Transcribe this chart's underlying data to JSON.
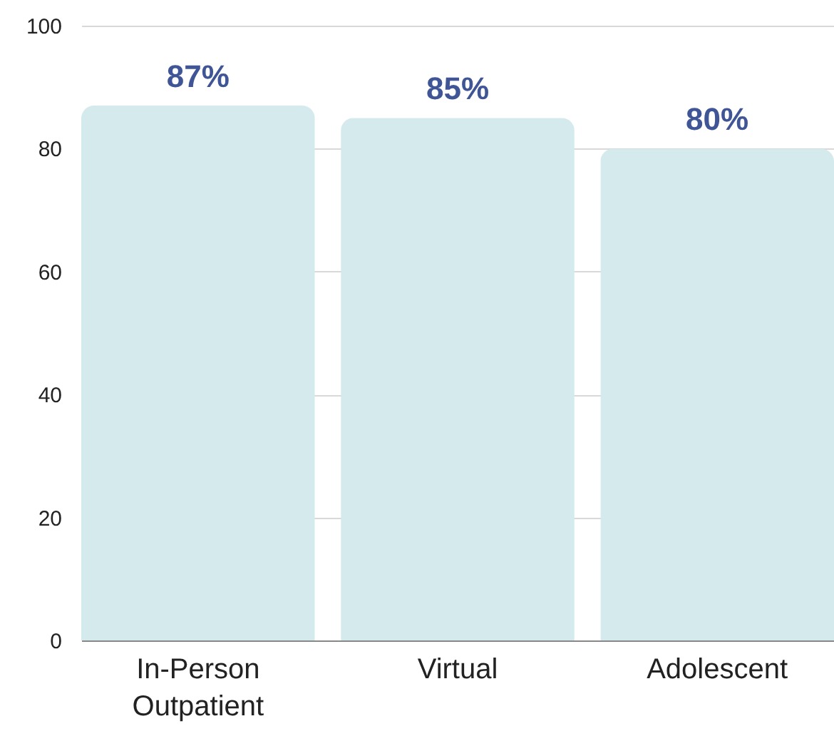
{
  "chart_data": {
    "type": "bar",
    "categories": [
      "In-Person Outpatient",
      "Virtual",
      "Adolescent"
    ],
    "values": [
      87,
      85,
      80
    ],
    "value_labels": [
      "87%",
      "85%",
      "80%"
    ],
    "color": "#d5eaec",
    "ylim": [
      0,
      100
    ],
    "yticks": [
      0,
      20,
      40,
      60,
      80,
      100
    ],
    "grid": "y"
  }
}
